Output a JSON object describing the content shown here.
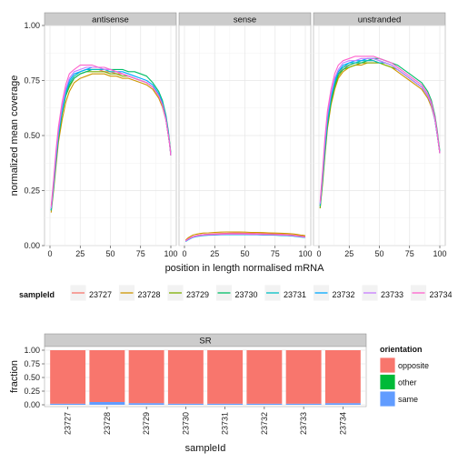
{
  "chart_data": [
    {
      "type": "line",
      "panels": [
        "antisense",
        "sense",
        "unstranded"
      ],
      "xlabel": "position in length normalised mRNA",
      "ylabel": "normalized mean coverage",
      "xlim": [
        0,
        100
      ],
      "ylim": [
        0,
        1
      ],
      "x_ticks": [
        "0",
        "25",
        "50",
        "75",
        "100"
      ],
      "y_ticks": [
        "0.00",
        "0.25",
        "0.50",
        "0.75",
        "1.00"
      ],
      "grid": true,
      "legend": {
        "title": "sampleId",
        "position": "bottom",
        "labels": [
          "23727",
          "23728",
          "23729",
          "23730",
          "23731",
          "23732",
          "23733",
          "23734"
        ]
      },
      "x": [
        1,
        3,
        5,
        7,
        10,
        13,
        16,
        20,
        25,
        30,
        35,
        40,
        45,
        50,
        55,
        60,
        65,
        70,
        75,
        80,
        85,
        90,
        93,
        96,
        98,
        99,
        100
      ],
      "series": [
        {
          "name": "23727",
          "color": "#F8766D",
          "antisense": [
            0.16,
            0.27,
            0.39,
            0.5,
            0.61,
            0.69,
            0.74,
            0.77,
            0.79,
            0.8,
            0.8,
            0.8,
            0.79,
            0.79,
            0.78,
            0.78,
            0.77,
            0.76,
            0.75,
            0.74,
            0.72,
            0.68,
            0.64,
            0.57,
            0.5,
            0.46,
            0.41
          ],
          "sense": [
            0.02,
            0.03,
            0.035,
            0.04,
            0.045,
            0.048,
            0.05,
            0.052,
            0.054,
            0.055,
            0.056,
            0.057,
            0.057,
            0.056,
            0.056,
            0.055,
            0.055,
            0.054,
            0.053,
            0.052,
            0.05,
            0.048,
            0.046,
            0.044,
            0.043,
            0.042,
            0.042
          ],
          "unstranded": [
            0.18,
            0.3,
            0.44,
            0.56,
            0.67,
            0.74,
            0.78,
            0.81,
            0.82,
            0.83,
            0.83,
            0.84,
            0.84,
            0.83,
            0.83,
            0.82,
            0.8,
            0.78,
            0.76,
            0.74,
            0.72,
            0.68,
            0.64,
            0.57,
            0.5,
            0.46,
            0.42
          ]
        },
        {
          "name": "23728",
          "color": "#CD9600",
          "antisense": [
            0.15,
            0.25,
            0.36,
            0.47,
            0.57,
            0.65,
            0.7,
            0.74,
            0.76,
            0.77,
            0.78,
            0.78,
            0.78,
            0.77,
            0.77,
            0.76,
            0.76,
            0.75,
            0.74,
            0.73,
            0.71,
            0.67,
            0.63,
            0.57,
            0.5,
            0.46,
            0.41
          ],
          "sense": [
            0.025,
            0.035,
            0.042,
            0.048,
            0.052,
            0.055,
            0.057,
            0.058,
            0.06,
            0.061,
            0.062,
            0.062,
            0.062,
            0.061,
            0.06,
            0.06,
            0.059,
            0.058,
            0.057,
            0.056,
            0.055,
            0.053,
            0.051,
            0.048,
            0.047,
            0.046,
            0.045
          ],
          "unstranded": [
            0.17,
            0.28,
            0.41,
            0.53,
            0.64,
            0.71,
            0.76,
            0.79,
            0.81,
            0.82,
            0.82,
            0.83,
            0.83,
            0.83,
            0.82,
            0.81,
            0.79,
            0.77,
            0.75,
            0.73,
            0.71,
            0.67,
            0.63,
            0.57,
            0.5,
            0.46,
            0.42
          ]
        },
        {
          "name": "23729",
          "color": "#7CAE00",
          "antisense": [
            0.16,
            0.26,
            0.38,
            0.49,
            0.6,
            0.68,
            0.72,
            0.76,
            0.78,
            0.79,
            0.79,
            0.79,
            0.79,
            0.78,
            0.78,
            0.77,
            0.77,
            0.76,
            0.75,
            0.74,
            0.72,
            0.68,
            0.64,
            0.57,
            0.5,
            0.46,
            0.41
          ],
          "sense": [
            0.02,
            0.03,
            0.036,
            0.041,
            0.045,
            0.048,
            0.05,
            0.051,
            0.052,
            0.053,
            0.054,
            0.054,
            0.054,
            0.054,
            0.053,
            0.053,
            0.052,
            0.051,
            0.05,
            0.049,
            0.048,
            0.046,
            0.044,
            0.042,
            0.041,
            0.04,
            0.04
          ],
          "unstranded": [
            0.17,
            0.29,
            0.42,
            0.54,
            0.65,
            0.72,
            0.77,
            0.8,
            0.81,
            0.82,
            0.83,
            0.83,
            0.83,
            0.83,
            0.82,
            0.81,
            0.8,
            0.78,
            0.76,
            0.74,
            0.72,
            0.68,
            0.64,
            0.57,
            0.5,
            0.46,
            0.42
          ]
        },
        {
          "name": "23730",
          "color": "#00BE67",
          "antisense": [
            0.16,
            0.27,
            0.38,
            0.49,
            0.6,
            0.68,
            0.73,
            0.76,
            0.78,
            0.79,
            0.8,
            0.8,
            0.8,
            0.8,
            0.8,
            0.8,
            0.79,
            0.79,
            0.78,
            0.77,
            0.74,
            0.7,
            0.66,
            0.59,
            0.52,
            0.47,
            0.42
          ],
          "sense": [
            0.02,
            0.028,
            0.034,
            0.039,
            0.043,
            0.046,
            0.048,
            0.049,
            0.05,
            0.051,
            0.052,
            0.052,
            0.052,
            0.052,
            0.051,
            0.051,
            0.05,
            0.05,
            0.049,
            0.048,
            0.047,
            0.045,
            0.043,
            0.041,
            0.04,
            0.039,
            0.039
          ],
          "unstranded": [
            0.18,
            0.3,
            0.43,
            0.55,
            0.66,
            0.73,
            0.78,
            0.8,
            0.82,
            0.83,
            0.83,
            0.84,
            0.85,
            0.85,
            0.84,
            0.83,
            0.82,
            0.8,
            0.78,
            0.76,
            0.74,
            0.7,
            0.66,
            0.59,
            0.52,
            0.47,
            0.43
          ]
        },
        {
          "name": "23731",
          "color": "#00BFC4",
          "antisense": [
            0.16,
            0.27,
            0.39,
            0.5,
            0.61,
            0.69,
            0.74,
            0.77,
            0.79,
            0.8,
            0.8,
            0.8,
            0.8,
            0.79,
            0.79,
            0.78,
            0.77,
            0.76,
            0.75,
            0.74,
            0.72,
            0.68,
            0.64,
            0.57,
            0.5,
            0.46,
            0.41
          ],
          "sense": [
            0.018,
            0.026,
            0.032,
            0.037,
            0.041,
            0.044,
            0.046,
            0.047,
            0.048,
            0.049,
            0.05,
            0.05,
            0.05,
            0.05,
            0.049,
            0.049,
            0.048,
            0.048,
            0.047,
            0.046,
            0.045,
            0.043,
            0.041,
            0.039,
            0.038,
            0.037,
            0.037
          ],
          "unstranded": [
            0.18,
            0.31,
            0.44,
            0.56,
            0.67,
            0.74,
            0.79,
            0.81,
            0.83,
            0.83,
            0.84,
            0.84,
            0.84,
            0.83,
            0.83,
            0.82,
            0.8,
            0.78,
            0.76,
            0.74,
            0.72,
            0.68,
            0.64,
            0.57,
            0.5,
            0.46,
            0.42
          ]
        },
        {
          "name": "23732",
          "color": "#00A9FF",
          "antisense": [
            0.17,
            0.28,
            0.4,
            0.51,
            0.62,
            0.7,
            0.75,
            0.78,
            0.79,
            0.8,
            0.81,
            0.81,
            0.8,
            0.8,
            0.79,
            0.79,
            0.78,
            0.77,
            0.76,
            0.75,
            0.73,
            0.69,
            0.65,
            0.58,
            0.51,
            0.46,
            0.41
          ],
          "sense": [
            0.019,
            0.027,
            0.033,
            0.038,
            0.042,
            0.045,
            0.047,
            0.048,
            0.049,
            0.05,
            0.051,
            0.051,
            0.051,
            0.051,
            0.05,
            0.05,
            0.049,
            0.049,
            0.048,
            0.047,
            0.046,
            0.044,
            0.042,
            0.04,
            0.039,
            0.038,
            0.038
          ],
          "unstranded": [
            0.19,
            0.32,
            0.46,
            0.58,
            0.68,
            0.75,
            0.79,
            0.82,
            0.83,
            0.84,
            0.84,
            0.85,
            0.85,
            0.84,
            0.83,
            0.82,
            0.8,
            0.78,
            0.76,
            0.74,
            0.72,
            0.68,
            0.64,
            0.57,
            0.5,
            0.46,
            0.42
          ]
        },
        {
          "name": "23733",
          "color": "#C77CFF",
          "antisense": [
            0.17,
            0.29,
            0.41,
            0.52,
            0.63,
            0.71,
            0.76,
            0.79,
            0.8,
            0.81,
            0.81,
            0.81,
            0.8,
            0.8,
            0.79,
            0.78,
            0.77,
            0.76,
            0.75,
            0.74,
            0.72,
            0.68,
            0.64,
            0.57,
            0.5,
            0.46,
            0.41
          ],
          "sense": [
            0.02,
            0.028,
            0.034,
            0.039,
            0.043,
            0.046,
            0.048,
            0.049,
            0.05,
            0.051,
            0.052,
            0.052,
            0.052,
            0.052,
            0.051,
            0.051,
            0.05,
            0.05,
            0.049,
            0.048,
            0.047,
            0.045,
            0.043,
            0.041,
            0.04,
            0.039,
            0.039
          ],
          "unstranded": [
            0.19,
            0.33,
            0.47,
            0.59,
            0.69,
            0.76,
            0.8,
            0.83,
            0.84,
            0.84,
            0.85,
            0.85,
            0.85,
            0.84,
            0.83,
            0.82,
            0.8,
            0.78,
            0.76,
            0.74,
            0.72,
            0.68,
            0.64,
            0.57,
            0.5,
            0.46,
            0.42
          ]
        },
        {
          "name": "23734",
          "color": "#FF61CC",
          "antisense": [
            0.18,
            0.3,
            0.43,
            0.54,
            0.65,
            0.73,
            0.78,
            0.8,
            0.82,
            0.82,
            0.82,
            0.81,
            0.81,
            0.8,
            0.79,
            0.78,
            0.77,
            0.76,
            0.75,
            0.74,
            0.72,
            0.68,
            0.64,
            0.57,
            0.5,
            0.46,
            0.41
          ],
          "sense": [
            0.022,
            0.03,
            0.036,
            0.041,
            0.045,
            0.048,
            0.05,
            0.051,
            0.052,
            0.053,
            0.054,
            0.054,
            0.054,
            0.054,
            0.053,
            0.053,
            0.052,
            0.051,
            0.05,
            0.049,
            0.048,
            0.046,
            0.044,
            0.042,
            0.041,
            0.04,
            0.04
          ],
          "unstranded": [
            0.2,
            0.34,
            0.49,
            0.61,
            0.71,
            0.78,
            0.82,
            0.84,
            0.85,
            0.86,
            0.86,
            0.86,
            0.86,
            0.85,
            0.84,
            0.83,
            0.81,
            0.79,
            0.77,
            0.75,
            0.73,
            0.69,
            0.65,
            0.58,
            0.51,
            0.46,
            0.42
          ]
        }
      ]
    },
    {
      "type": "bar",
      "stacked": true,
      "panel": "SR",
      "categories": [
        "23727",
        "23728",
        "23729",
        "23730",
        "23731",
        "23732",
        "23733",
        "23734"
      ],
      "xlabel": "sampleId",
      "ylabel": "fraction",
      "ylim": [
        0,
        1
      ],
      "y_ticks": [
        "0.00",
        "0.25",
        "0.50",
        "0.75",
        "1.00"
      ],
      "legend": {
        "title": "orientation",
        "position": "right"
      },
      "series": [
        {
          "name": "same",
          "color": "#619CFF",
          "values": [
            0.02,
            0.05,
            0.03,
            0.02,
            0.02,
            0.02,
            0.02,
            0.03
          ]
        },
        {
          "name": "other",
          "color": "#00BA38",
          "values": [
            0.0,
            0.0,
            0.0,
            0.0,
            0.0,
            0.0,
            0.0,
            0.0
          ]
        },
        {
          "name": "opposite",
          "color": "#F8766D",
          "values": [
            0.98,
            0.95,
            0.97,
            0.98,
            0.98,
            0.98,
            0.98,
            0.97
          ]
        }
      ],
      "legend_order": [
        "opposite",
        "other",
        "same"
      ]
    }
  ]
}
